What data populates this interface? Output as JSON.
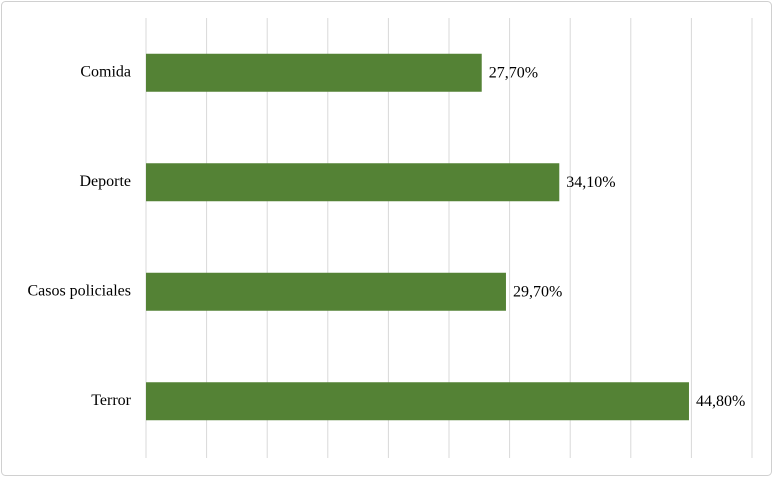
{
  "chart_data": {
    "type": "bar",
    "orientation": "horizontal",
    "categories": [
      "Comida",
      "Deporte",
      "Casos policiales",
      "Terror"
    ],
    "values": [
      27.7,
      34.1,
      29.7,
      44.8
    ],
    "value_labels": [
      "27,70%",
      "34,10%",
      "29,70%",
      "44,80%"
    ],
    "color": "#548235",
    "xlim": [
      0,
      50
    ],
    "xticks": [
      0,
      5,
      10,
      15,
      20,
      25,
      30,
      35,
      40,
      45,
      50
    ],
    "grid": true
  }
}
